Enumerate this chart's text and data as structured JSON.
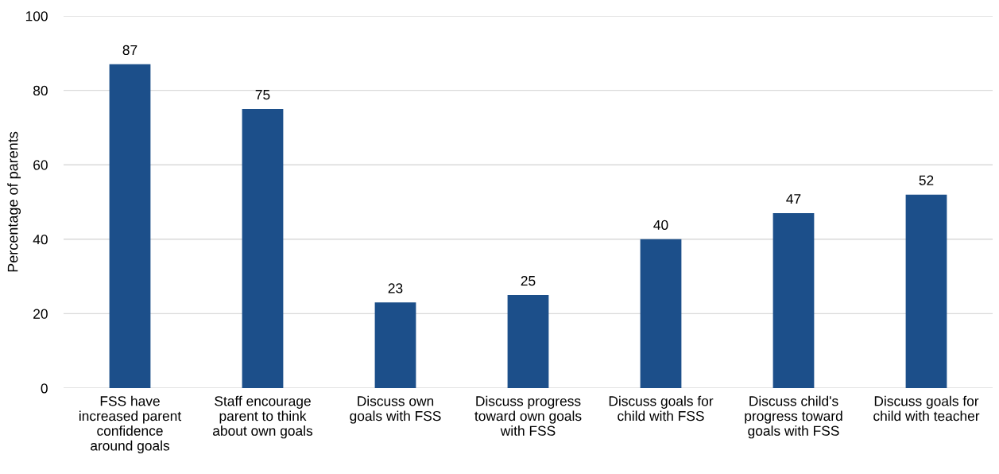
{
  "chart_data": {
    "type": "bar",
    "ylabel": "Percentage of parents",
    "categories": [
      "FSS have\nincreased parent\nconfidence\naround goals",
      "Staff encourage\nparent to think\nabout own goals",
      "Discuss own\ngoals with FSS",
      "Discuss progress\ntoward own goals\nwith FSS",
      "Discuss goals for\nchild with FSS",
      "Discuss child's\nprogress toward\ngoals with FSS",
      "Discuss goals for\nchild with teacher"
    ],
    "values": [
      87,
      75,
      23,
      25,
      40,
      47,
      52
    ],
    "color": "#1c4f8a",
    "ylim": [
      0,
      100
    ],
    "yticks": [
      0,
      20,
      40,
      60,
      80,
      100
    ],
    "grid": "y",
    "data_labels": true
  }
}
